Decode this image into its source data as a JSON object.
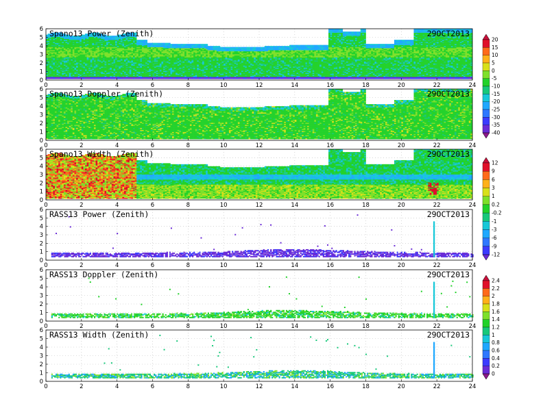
{
  "page": {
    "date_label": "29OCT2013"
  },
  "colorbars": [
    {
      "id": "power_doppler",
      "ticks": [
        "20",
        "15",
        "10",
        "5",
        "0",
        "-5",
        "-10",
        "-15",
        "-20",
        "-25",
        "-30",
        "-35",
        "-40"
      ]
    },
    {
      "id": "width",
      "ticks": [
        "12",
        "9",
        "6",
        "3",
        "1",
        "0.2",
        "-0.2",
        "-1",
        "-3",
        "-6",
        "-9",
        "-12"
      ]
    },
    {
      "id": "rass",
      "ticks": [
        "2.4",
        "2.2",
        "2",
        "1.8",
        "1.6",
        "1.4",
        "1.2",
        "1",
        "0.8",
        "0.6",
        "0.4",
        "0.2",
        "0"
      ]
    }
  ],
  "palette": [
    "#8b1a8b",
    "#6a2bd6",
    "#3b3bff",
    "#2f78ff",
    "#1fa8ff",
    "#17c8d8",
    "#17c87a",
    "#22d22a",
    "#7ee02a",
    "#d8e01a",
    "#ffb01a",
    "#ff6a1a",
    "#e0102a",
    "#c8103a"
  ],
  "chart_data": [
    {
      "type": "heatmap",
      "title": "Spano13 Power (Zenith)",
      "date": "29OCT2013",
      "xlim": [
        0,
        24
      ],
      "ylim": [
        0,
        6
      ],
      "x_ticks": [
        "0",
        "2",
        "4",
        "6",
        "8",
        "10",
        "12",
        "14",
        "16",
        "18",
        "20",
        "22",
        "24"
      ],
      "y_ticks": [
        "0",
        "1",
        "2",
        "3",
        "4",
        "5",
        "6"
      ],
      "colorbar": "power_doppler"
    },
    {
      "type": "heatmap",
      "title": "Spano13 Doppler (Zenith)",
      "date": "29OCT2013",
      "xlim": [
        0,
        24
      ],
      "ylim": [
        0,
        6
      ],
      "x_ticks": [
        "0",
        "2",
        "4",
        "6",
        "8",
        "10",
        "12",
        "14",
        "16",
        "18",
        "20",
        "22",
        "24"
      ],
      "y_ticks": [
        "0",
        "1",
        "2",
        "3",
        "4",
        "5",
        "6"
      ],
      "colorbar": "power_doppler"
    },
    {
      "type": "heatmap",
      "title": "Spano13 Width (Zenith)",
      "date": "29OCT2013",
      "xlim": [
        0,
        24
      ],
      "ylim": [
        0,
        6
      ],
      "x_ticks": [
        "0",
        "2",
        "4",
        "6",
        "8",
        "10",
        "12",
        "14",
        "16",
        "18",
        "20",
        "22",
        "24"
      ],
      "y_ticks": [
        "0",
        "1",
        "2",
        "3",
        "4",
        "5",
        "6"
      ],
      "colorbar": "width"
    },
    {
      "type": "heatmap",
      "title": "RASS13 Power (Zenith)",
      "date": "29OCT2013",
      "xlim": [
        0,
        24
      ],
      "ylim": [
        0,
        6
      ],
      "x_ticks": [
        "0",
        "2",
        "4",
        "6",
        "8",
        "10",
        "12",
        "14",
        "16",
        "18",
        "20",
        "22",
        "24"
      ],
      "y_ticks": [
        "0",
        "1",
        "2",
        "3",
        "4",
        "5",
        "6"
      ],
      "colorbar": "width"
    },
    {
      "type": "heatmap",
      "title": "RASS13 Doppler (Zenith)",
      "date": "29OCT2013",
      "xlim": [
        0,
        24
      ],
      "ylim": [
        0,
        6
      ],
      "x_ticks": [
        "0",
        "2",
        "4",
        "6",
        "8",
        "10",
        "12",
        "14",
        "16",
        "18",
        "20",
        "22",
        "24"
      ],
      "y_ticks": [
        "0",
        "1",
        "2",
        "3",
        "4",
        "5",
        "6"
      ],
      "colorbar": "rass"
    },
    {
      "type": "heatmap",
      "title": "RASS13 Width (Zenith)",
      "date": "29OCT2013",
      "xlim": [
        0,
        24
      ],
      "ylim": [
        0,
        6
      ],
      "x_ticks": [
        "0",
        "2",
        "4",
        "6",
        "8",
        "10",
        "12",
        "14",
        "16",
        "18",
        "20",
        "22",
        "24"
      ],
      "y_ticks": [
        "0",
        "1",
        "2",
        "3",
        "4",
        "5",
        "6"
      ],
      "colorbar": "rass"
    }
  ]
}
